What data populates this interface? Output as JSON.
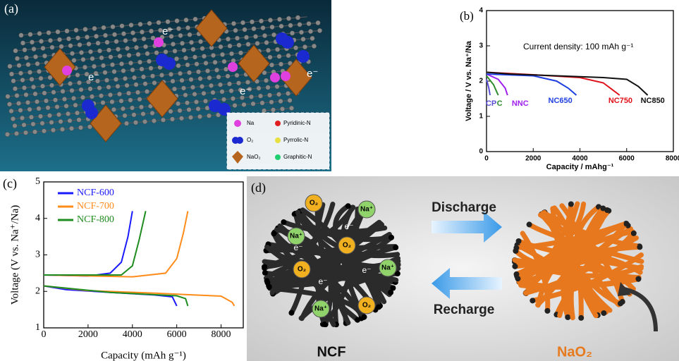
{
  "panels": [
    "(a)",
    "(b)",
    "(c)",
    "(d)"
  ],
  "panel_a": {
    "electron": "e⁻",
    "legend": [
      "Na",
      "O₂",
      "NaO₂",
      "Pyridinic-N",
      "Pyrrolic-N",
      "Graphitic-N"
    ]
  },
  "panel_d": {
    "discharge": "Discharge",
    "recharge": "Recharge",
    "left_label": "NCF",
    "right_label": "NaO₂",
    "species": [
      "O₂",
      "Na⁺",
      "e⁻"
    ]
  },
  "chart_data": [
    {
      "type": "line",
      "annotation": "Current density: 100 mAh g⁻¹",
      "x_label": "Capacity / mAhg⁻¹",
      "y_label": "Voltage / V vs. Na⁺/Na",
      "xlim": [
        0,
        8000
      ],
      "xticks": [
        0,
        2000,
        4000,
        6000,
        8000
      ],
      "ylim": [
        0,
        4
      ],
      "yticks": [
        0,
        1,
        2,
        3,
        4
      ],
      "series": [
        {
          "name": "CP",
          "color": "#5a4fd6",
          "x": [
            0,
            100,
            150
          ],
          "values": [
            2.05,
            1.8,
            1.6
          ]
        },
        {
          "name": "C",
          "color": "#2e8b2e",
          "x": [
            0,
            300,
            500
          ],
          "values": [
            2.15,
            1.9,
            1.6
          ]
        },
        {
          "name": "NNC",
          "color": "#a020f0",
          "x": [
            0,
            500,
            800,
            900
          ],
          "values": [
            2.2,
            2.05,
            1.8,
            1.6
          ]
        },
        {
          "name": "NC650",
          "color": "#1f3fe0",
          "x": [
            0,
            2000,
            3000,
            3500,
            3850
          ],
          "values": [
            2.2,
            2.15,
            2.0,
            1.8,
            1.6
          ]
        },
        {
          "name": "NC750",
          "color": "#e0101a",
          "x": [
            0,
            2000,
            4000,
            5000,
            5700
          ],
          "values": [
            2.25,
            2.18,
            2.1,
            1.95,
            1.6
          ]
        },
        {
          "name": "NC850",
          "color": "#111111",
          "x": [
            0,
            1000,
            3000,
            5000,
            6000,
            6500,
            6900
          ],
          "values": [
            2.25,
            2.2,
            2.15,
            2.1,
            2.05,
            1.85,
            1.6
          ]
        }
      ]
    },
    {
      "type": "line",
      "legend": "upper left",
      "x_label": "Capacity (mAh g⁻¹)",
      "y_label": "Voltage (V vs. Na⁺/Na)",
      "xlim": [
        0,
        9000
      ],
      "xticks": [
        0,
        2000,
        4000,
        6000,
        8000
      ],
      "ylim": [
        1,
        5
      ],
      "yticks": [
        1,
        2,
        3,
        4,
        5
      ],
      "series": [
        {
          "name": "NCF-600",
          "color": "#1a1aff",
          "x": [
            0,
            1000,
            3000,
            5000,
            5800,
            6000,
            null,
            0,
            2000,
            3000,
            3500,
            3800,
            4000
          ],
          "values": [
            2.15,
            2.05,
            1.97,
            1.9,
            1.85,
            1.6,
            null,
            2.45,
            2.42,
            2.5,
            2.8,
            3.5,
            4.2
          ]
        },
        {
          "name": "NCF-700",
          "color": "#ff8c1a",
          "x": [
            0,
            2000,
            5000,
            8000,
            8500,
            8600,
            null,
            0,
            4000,
            5500,
            6000,
            6300,
            6500
          ],
          "values": [
            2.15,
            2.02,
            1.95,
            1.87,
            1.7,
            1.6,
            null,
            2.45,
            2.4,
            2.5,
            2.9,
            3.6,
            4.2
          ]
        },
        {
          "name": "NCF-800",
          "color": "#1e8c1e",
          "x": [
            0,
            3000,
            6000,
            6400,
            6500,
            null,
            0,
            3500,
            4000,
            4300,
            4600
          ],
          "values": [
            2.15,
            1.97,
            1.88,
            1.8,
            1.6,
            null,
            2.45,
            2.45,
            2.7,
            3.4,
            4.2
          ]
        }
      ]
    }
  ]
}
